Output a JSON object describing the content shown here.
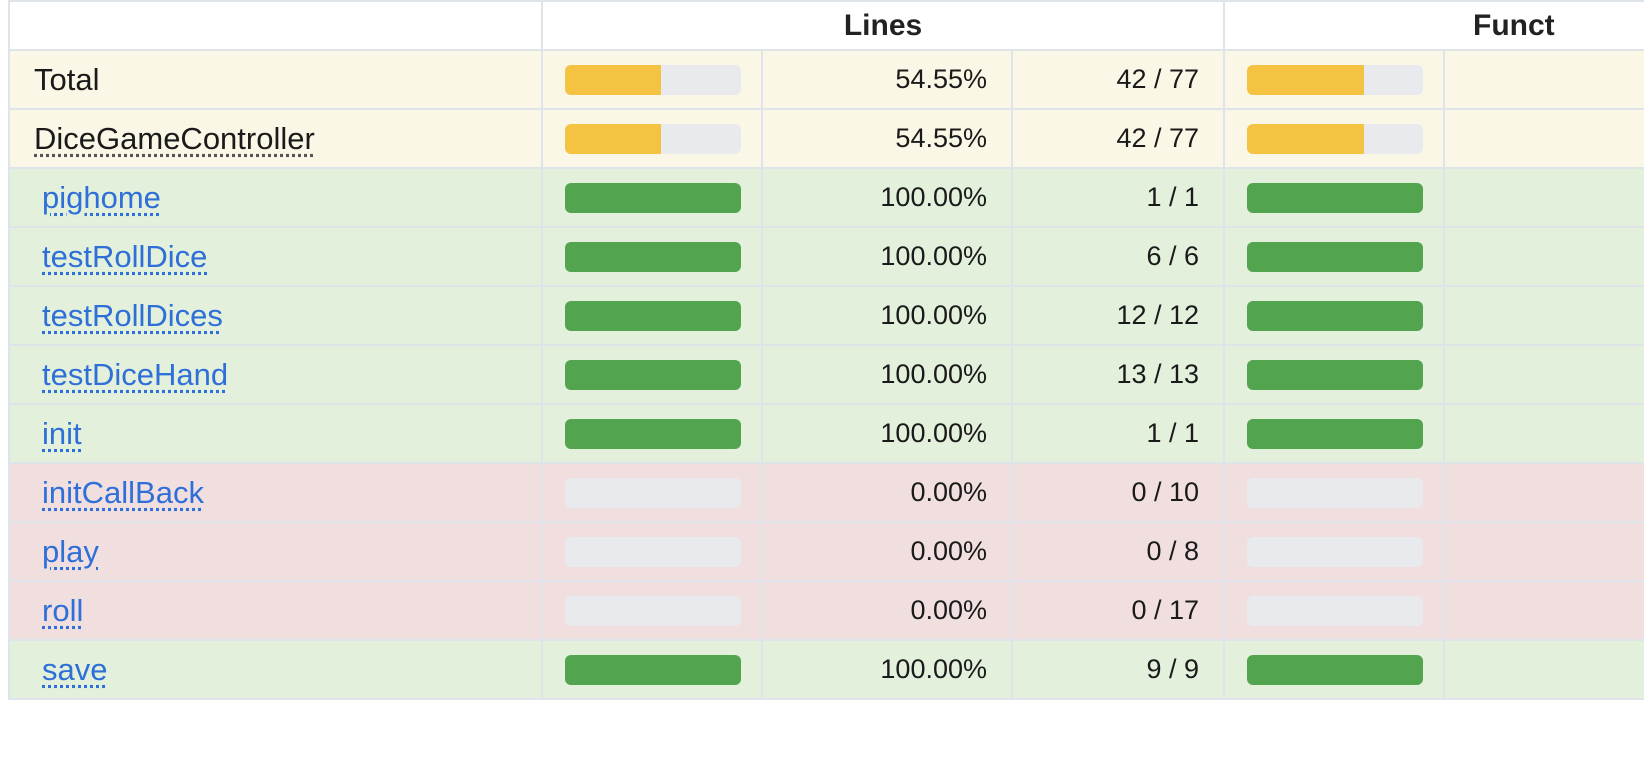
{
  "header": {
    "lines_label": "Lines",
    "functions_label": "Funct"
  },
  "colors": {
    "bar_empty": "#e8eaee",
    "bar_success": "#52a44f",
    "bar_warning": "#f4c342"
  },
  "rows": [
    {
      "name": "Total",
      "style": "plain",
      "status": "warn",
      "lines_pct": "54.55%",
      "lines_ratio": "42 / 77",
      "lines_fill": 0.5455,
      "func_fill": 0.6667
    },
    {
      "name": "DiceGameController",
      "style": "underline",
      "status": "warn",
      "lines_pct": "54.55%",
      "lines_ratio": "42 / 77",
      "lines_fill": 0.5455,
      "func_fill": 0.6667
    },
    {
      "name": "pighome",
      "style": "link",
      "status": "ok",
      "lines_pct": "100.00%",
      "lines_ratio": "1 / 1",
      "lines_fill": 1.0,
      "func_fill": 1.0
    },
    {
      "name": "testRollDice",
      "style": "link",
      "status": "ok",
      "lines_pct": "100.00%",
      "lines_ratio": "6 / 6",
      "lines_fill": 1.0,
      "func_fill": 1.0
    },
    {
      "name": "testRollDices",
      "style": "link",
      "status": "ok",
      "lines_pct": "100.00%",
      "lines_ratio": "12 / 12",
      "lines_fill": 1.0,
      "func_fill": 1.0
    },
    {
      "name": "testDiceHand",
      "style": "link",
      "status": "ok",
      "lines_pct": "100.00%",
      "lines_ratio": "13 / 13",
      "lines_fill": 1.0,
      "func_fill": 1.0
    },
    {
      "name": "init",
      "style": "link",
      "status": "ok",
      "lines_pct": "100.00%",
      "lines_ratio": "1 / 1",
      "lines_fill": 1.0,
      "func_fill": 1.0
    },
    {
      "name": "initCallBack",
      "style": "link",
      "status": "bad",
      "lines_pct": "0.00%",
      "lines_ratio": "0 / 10",
      "lines_fill": 0.0,
      "func_fill": 0.0
    },
    {
      "name": "play",
      "style": "link",
      "status": "bad",
      "lines_pct": "0.00%",
      "lines_ratio": "0 / 8",
      "lines_fill": 0.0,
      "func_fill": 0.0
    },
    {
      "name": "roll",
      "style": "link",
      "status": "bad",
      "lines_pct": "0.00%",
      "lines_ratio": "0 / 17",
      "lines_fill": 0.0,
      "func_fill": 0.0
    },
    {
      "name": "save",
      "style": "link",
      "status": "ok",
      "lines_pct": "100.00%",
      "lines_ratio": "9 / 9",
      "lines_fill": 1.0,
      "func_fill": 1.0
    }
  ]
}
